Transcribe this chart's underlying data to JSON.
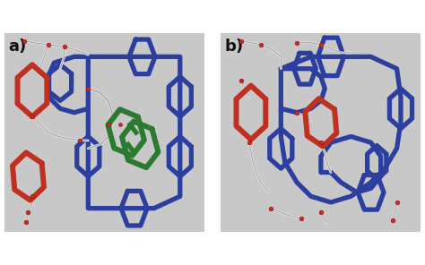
{
  "background_color": "#ffffff",
  "label_a": "a)",
  "label_b": "b)",
  "label_fontsize": 13,
  "label_color": "#111111",
  "fig_width": 4.74,
  "fig_height": 2.96,
  "dpi": 100,
  "blue": "#2c3f9e",
  "red": "#c03020",
  "green": "#2a7a30",
  "gray_light": "#b8b8b8",
  "gray_dark": "#808080",
  "white_chain": "#e8e8e8",
  "panel_bg": "#c8c8c8",
  "lw_ring": 3.8,
  "lw_chain": 1.5,
  "dot_size": 3.5
}
